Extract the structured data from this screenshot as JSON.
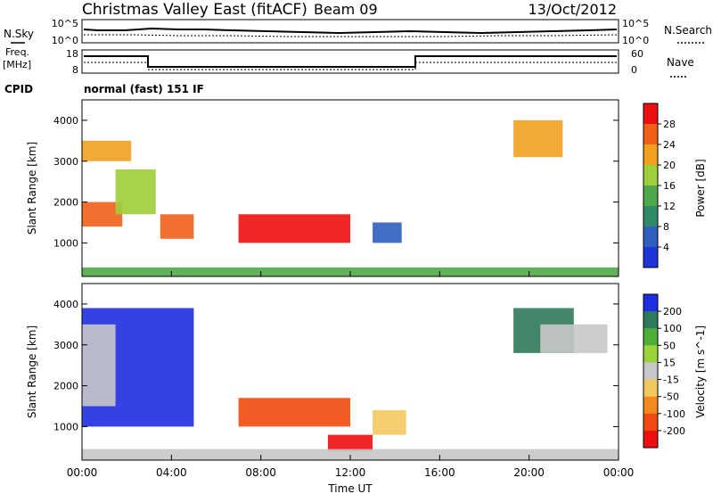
{
  "header": {
    "title": "Christmas Valley East (fitACF)",
    "beam": "Beam 09",
    "date": "13/Oct/2012"
  },
  "noise_panel": {
    "left_label": "N.Sky",
    "right_label": "N.Search",
    "yticks": [
      "10^5",
      "10^0"
    ]
  },
  "freq_panel": {
    "left_label_1": "Freq.",
    "left_label_2": "[MHz]",
    "right_label": "Nave",
    "left_ticks": [
      "18",
      "8"
    ],
    "right_ticks": [
      "60",
      "0"
    ]
  },
  "cpid": {
    "label": "CPID",
    "value": "normal (fast) 151 IF"
  },
  "colors": {
    "power_scale": [
      "#1f35d8",
      "#2f5ec0",
      "#2f8a66",
      "#4fa84a",
      "#9fcf3a",
      "#f2a020",
      "#f06018",
      "#ee1010"
    ],
    "velocity_scale": [
      "#1f2ee0",
      "#2f7a5a",
      "#4fae3a",
      "#9ad43a",
      "#c8c8c8",
      "#f2c860",
      "#f28a20",
      "#f04a10",
      "#ee1010"
    ]
  },
  "chart_data": [
    {
      "type": "heatmap",
      "title": "",
      "xlabel": "",
      "ylabel": "Slant Range [km]",
      "x_tick_labels": [
        "00:00",
        "04:00",
        "08:00",
        "12:00",
        "16:00",
        "20:00",
        "00:00"
      ],
      "xlim": [
        0,
        24
      ],
      "ylim": [
        180,
        4500
      ],
      "y_tick_labels": [
        "1000",
        "2000",
        "3000",
        "4000"
      ],
      "colorbar": {
        "label": "Power [dB]",
        "tick_labels": [
          "28",
          "24",
          "20",
          "16",
          "12",
          "8",
          "4"
        ],
        "range": [
          0,
          30
        ]
      },
      "regions": [
        {
          "x": [
            0.0,
            2.2
          ],
          "y": [
            3000,
            3500
          ],
          "value": 22
        },
        {
          "x": [
            0.0,
            1.8
          ],
          "y": [
            1400,
            2000
          ],
          "value": 24
        },
        {
          "x": [
            1.5,
            3.3
          ],
          "y": [
            1700,
            2800
          ],
          "value": 16
        },
        {
          "x": [
            3.5,
            5.0
          ],
          "y": [
            1100,
            1700
          ],
          "value": 26
        },
        {
          "x": [
            7.0,
            12.0
          ],
          "y": [
            1000,
            1700
          ],
          "value": 28
        },
        {
          "x": [
            13.0,
            14.3
          ],
          "y": [
            1000,
            1500
          ],
          "value": 6
        },
        {
          "x": [
            0.0,
            24.0
          ],
          "y": [
            180,
            400
          ],
          "value": 14
        },
        {
          "x": [
            19.3,
            21.5
          ],
          "y": [
            3100,
            4000
          ],
          "value": 20
        }
      ]
    },
    {
      "type": "heatmap",
      "title": "",
      "xlabel": "Time UT",
      "ylabel": "Slant Range [km]",
      "x_tick_labels": [
        "00:00",
        "04:00",
        "08:00",
        "12:00",
        "16:00",
        "20:00",
        "00:00"
      ],
      "xlim": [
        0,
        24
      ],
      "ylim": [
        180,
        4500
      ],
      "y_tick_labels": [
        "1000",
        "2000",
        "3000",
        "4000"
      ],
      "colorbar": {
        "label": "Velocity [m s^-1]",
        "tick_labels": [
          "200",
          "100",
          "50",
          "15",
          "-15",
          "-50",
          "-100",
          "-200"
        ],
        "range": [
          -250,
          250
        ]
      },
      "regions": [
        {
          "x": [
            0.0,
            5.0
          ],
          "y": [
            1000,
            3900
          ],
          "value": 200
        },
        {
          "x": [
            0.0,
            1.5
          ],
          "y": [
            1500,
            3500
          ],
          "value": 0
        },
        {
          "x": [
            7.0,
            12.0
          ],
          "y": [
            1000,
            1700
          ],
          "value": -180
        },
        {
          "x": [
            11.0,
            13.0
          ],
          "y": [
            400,
            800
          ],
          "value": -230
        },
        {
          "x": [
            13.0,
            14.5
          ],
          "y": [
            800,
            1400
          ],
          "value": -80
        },
        {
          "x": [
            0.0,
            24.0
          ],
          "y": [
            180,
            450
          ],
          "value": 20
        },
        {
          "x": [
            19.3,
            22.0
          ],
          "y": [
            2800,
            3900
          ],
          "value": 180
        },
        {
          "x": [
            20.5,
            23.5
          ],
          "y": [
            2800,
            3500
          ],
          "value": 0
        }
      ]
    }
  ]
}
